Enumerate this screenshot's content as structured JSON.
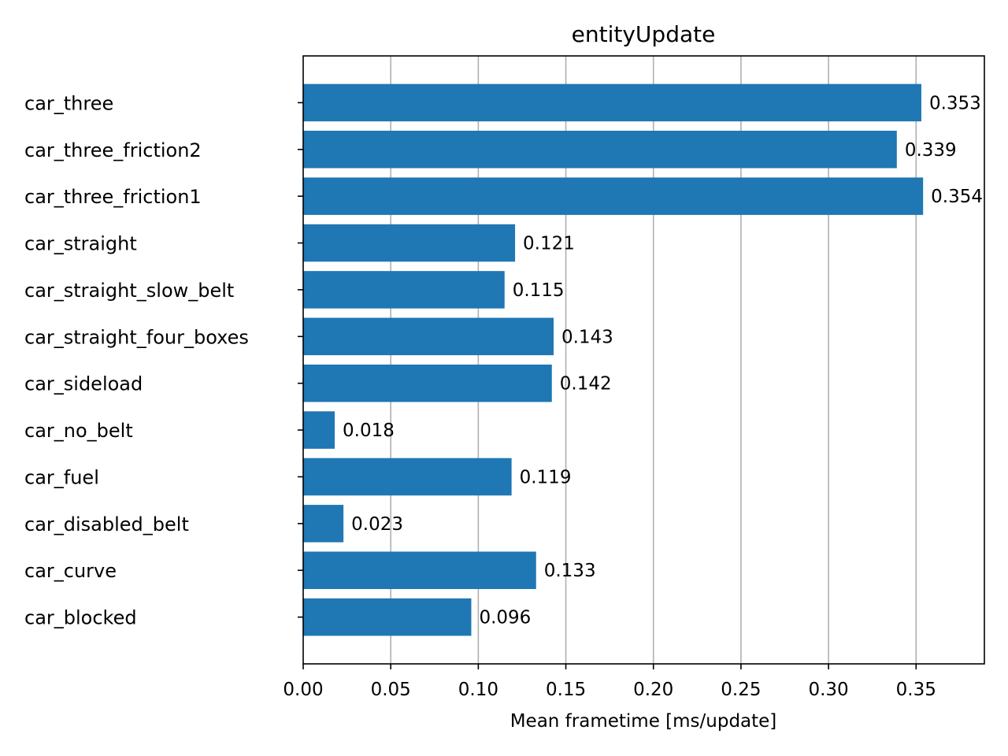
{
  "chart_data": {
    "type": "bar",
    "orientation": "horizontal",
    "title": "entityUpdate",
    "xlabel": "Mean frametime [ms/update]",
    "ylabel": "",
    "xlim": [
      0,
      0.389
    ],
    "xticks": [
      "0.00",
      "0.05",
      "0.10",
      "0.15",
      "0.20",
      "0.25",
      "0.30",
      "0.35"
    ],
    "grid": "x-axis vertical lines",
    "bar_color": "#1f77b4",
    "grid_color": "#b0b0b0",
    "categories": [
      "car_three",
      "car_three_friction2",
      "car_three_friction1",
      "car_straight",
      "car_straight_slow_belt",
      "car_straight_four_boxes",
      "car_sideload",
      "car_no_belt",
      "car_fuel",
      "car_disabled_belt",
      "car_curve",
      "car_blocked"
    ],
    "values": [
      0.353,
      0.339,
      0.354,
      0.121,
      0.115,
      0.143,
      0.142,
      0.018,
      0.119,
      0.023,
      0.133,
      0.096
    ],
    "value_labels": [
      "0.353",
      "0.339",
      "0.354",
      "0.121",
      "0.115",
      "0.143",
      "0.142",
      "0.018",
      "0.119",
      "0.023",
      "0.133",
      "0.096"
    ]
  }
}
